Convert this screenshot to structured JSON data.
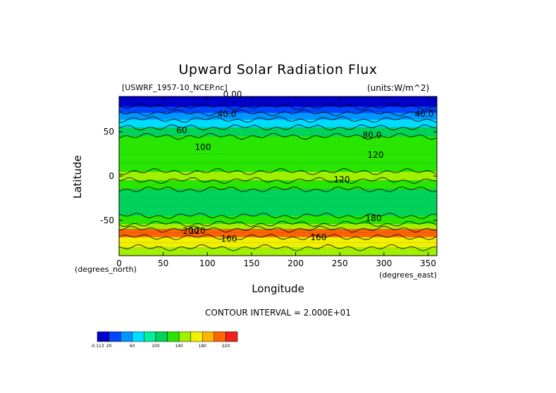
{
  "chart_data": {
    "type": "heatmap",
    "title": "Upward Solar Radiation Flux",
    "source_label": "[USWRF_1957-10_NCEP.nc]",
    "units_label": "(units:W/m^2)",
    "xlabel": "Longitude",
    "ylabel": "Latitude",
    "x_unit_label": "(degrees_north)",
    "y_unit_label": "(degrees_east)",
    "contour_interval_text": "CONTOUR INTERVAL = 2.000E+01",
    "xlim": [
      0,
      360
    ],
    "ylim": [
      -90,
      90
    ],
    "x_ticks": [
      0,
      50,
      100,
      150,
      200,
      250,
      300,
      350
    ],
    "y_ticks": [
      -50,
      0,
      50
    ],
    "x_tick_labels": [
      "0",
      "50",
      "100",
      "150",
      "200",
      "250",
      "300",
      "350"
    ],
    "y_tick_labels": [
      "-50",
      "0",
      "50"
    ],
    "colorbar": {
      "tick_labels": [
        "-0.113",
        "20",
        "60",
        "100",
        "140",
        "180",
        "220"
      ],
      "colors": [
        "#0000c8",
        "#0046ff",
        "#0096ff",
        "#00dcff",
        "#00f0a0",
        "#00d25a",
        "#28e600",
        "#a0f000",
        "#f0f000",
        "#ffb400",
        "#ff6400",
        "#f01e1e"
      ]
    },
    "contour_labels": [
      "0.00",
      "40.0",
      "40.0",
      "60",
      "80.0",
      "100",
      "120",
      "120",
      "120",
      "160",
      "160",
      "200",
      "180"
    ],
    "latitude_bands": [
      {
        "lat": 82,
        "value": 5
      },
      {
        "lat": 75,
        "value": 25
      },
      {
        "lat": 68,
        "value": 45
      },
      {
        "lat": 60,
        "value": 75
      },
      {
        "lat": 50,
        "value": 105
      },
      {
        "lat": 40,
        "value": 120
      },
      {
        "lat": 30,
        "value": 125
      },
      {
        "lat": 20,
        "value": 135
      },
      {
        "lat": 10,
        "value": 125
      },
      {
        "lat": 0,
        "value": 140
      },
      {
        "lat": -10,
        "value": 125
      },
      {
        "lat": -20,
        "value": 115
      },
      {
        "lat": -30,
        "value": 110
      },
      {
        "lat": -40,
        "value": 115
      },
      {
        "lat": -50,
        "value": 130
      },
      {
        "lat": -58,
        "value": 150
      },
      {
        "lat": -62,
        "value": 215
      },
      {
        "lat": -66,
        "value": 205
      },
      {
        "lat": -72,
        "value": 175
      },
      {
        "lat": -78,
        "value": 160
      },
      {
        "lat": -84,
        "value": 150
      }
    ]
  }
}
